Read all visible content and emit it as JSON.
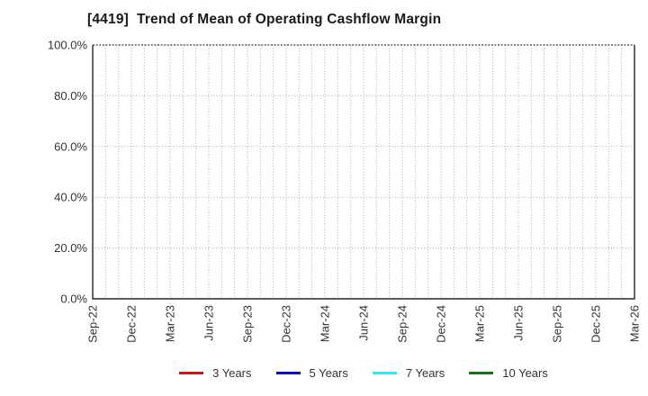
{
  "title": "[4419]  Trend of Mean of Operating Cashflow Margin",
  "chart_data": {
    "type": "line",
    "title": "[4419]  Trend of Mean of Operating Cashflow Margin",
    "xlabel": "",
    "ylabel": "",
    "ylim": [
      0,
      100
    ],
    "y_tick_labels": [
      "0.0%",
      "20.0%",
      "40.0%",
      "60.0%",
      "80.0%",
      "100.0%"
    ],
    "x_tick_labels": [
      "Sep-22",
      "Dec-22",
      "Mar-23",
      "Jun-23",
      "Sep-23",
      "Dec-23",
      "Mar-24",
      "Jun-24",
      "Sep-24",
      "Dec-24",
      "Mar-25",
      "Jun-25",
      "Sep-25",
      "Dec-25",
      "Mar-26"
    ],
    "x_minor_per_major": 3,
    "grid": true,
    "legend_position": "bottom",
    "series": [
      {
        "name": "3 Years",
        "color": "#ff0000",
        "values": []
      },
      {
        "name": "5 Years",
        "color": "#0000ff",
        "values": []
      },
      {
        "name": "7 Years",
        "color": "#00ffff",
        "values": []
      },
      {
        "name": "10 Years",
        "color": "#008000",
        "values": []
      }
    ]
  },
  "style": {
    "grid_color": "#aaaaaa",
    "spine_color": "#262626",
    "tick_label_color": "#333333"
  }
}
